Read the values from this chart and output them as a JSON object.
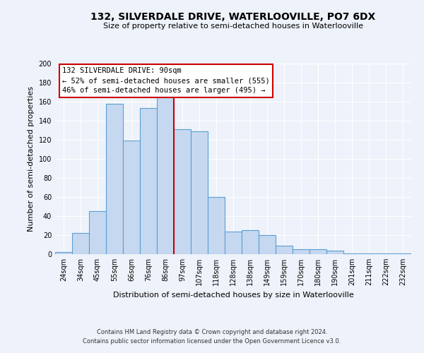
{
  "title": "132, SILVERDALE DRIVE, WATERLOOVILLE, PO7 6DX",
  "subtitle": "Size of property relative to semi-detached houses in Waterlooville",
  "xlabel": "Distribution of semi-detached houses by size in Waterlooville",
  "ylabel": "Number of semi-detached properties",
  "bar_labels": [
    "24sqm",
    "34sqm",
    "45sqm",
    "55sqm",
    "66sqm",
    "76sqm",
    "86sqm",
    "97sqm",
    "107sqm",
    "118sqm",
    "128sqm",
    "138sqm",
    "149sqm",
    "159sqm",
    "170sqm",
    "180sqm",
    "190sqm",
    "201sqm",
    "211sqm",
    "222sqm",
    "232sqm"
  ],
  "bar_values": [
    2,
    22,
    45,
    158,
    119,
    153,
    165,
    131,
    129,
    60,
    24,
    25,
    20,
    9,
    5,
    5,
    4,
    1,
    1,
    1,
    1
  ],
  "bar_color": "#c5d8f0",
  "bar_edge_color": "#5a9fd4",
  "vline_x": 6.5,
  "vline_color": "#cc0000",
  "ylim": [
    0,
    200
  ],
  "yticks": [
    0,
    20,
    40,
    60,
    80,
    100,
    120,
    140,
    160,
    180,
    200
  ],
  "annotation_title": "132 SILVERDALE DRIVE: 90sqm",
  "annotation_line1": "← 52% of semi-detached houses are smaller (555)",
  "annotation_line2": "46% of semi-detached houses are larger (495) →",
  "footer_line1": "Contains HM Land Registry data © Crown copyright and database right 2024.",
  "footer_line2": "Contains public sector information licensed under the Open Government Licence v3.0.",
  "background_color": "#eef2fa",
  "grid_color": "#ffffff",
  "title_fontsize": 10,
  "subtitle_fontsize": 8,
  "ylabel_fontsize": 8,
  "xlabel_fontsize": 8,
  "tick_fontsize": 7,
  "footer_fontsize": 6,
  "ann_fontsize": 7.5
}
